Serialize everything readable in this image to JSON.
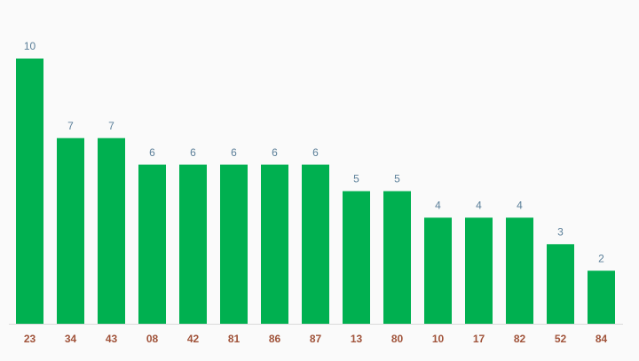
{
  "chart_data": {
    "type": "bar",
    "categories": [
      "23",
      "34",
      "43",
      "08",
      "42",
      "81",
      "86",
      "87",
      "13",
      "80",
      "10",
      "17",
      "82",
      "52",
      "84"
    ],
    "values": [
      10,
      7,
      7,
      6,
      6,
      6,
      6,
      6,
      5,
      5,
      4,
      4,
      4,
      3,
      2
    ],
    "color": "#00b050"
  }
}
